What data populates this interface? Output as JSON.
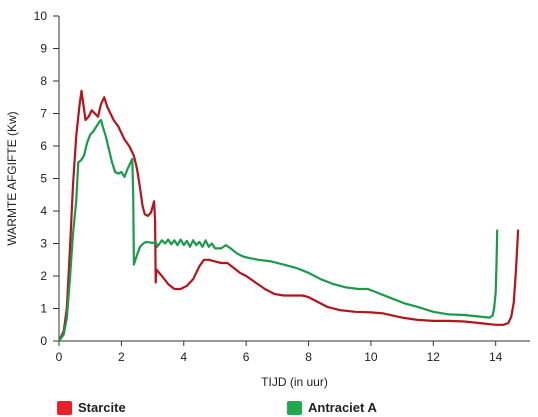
{
  "chart_data": {
    "type": "line",
    "xlabel": "TIJD (in uur)",
    "ylabel": "WARMTE AFGIFTE (Kw)",
    "xlim": [
      0,
      15.1
    ],
    "ylim": [
      0,
      10
    ],
    "xticks": [
      0,
      2,
      4,
      6,
      8,
      10,
      12,
      14
    ],
    "yticks": [
      0,
      1,
      2,
      3,
      4,
      5,
      6,
      7,
      8,
      9,
      10
    ],
    "grid": "y-ticks only",
    "legend_position": "bottom",
    "series": [
      {
        "name": "Starcite",
        "color": "#b4141e",
        "points": [
          [
            0.0,
            0.0
          ],
          [
            0.15,
            0.3
          ],
          [
            0.25,
            1.0
          ],
          [
            0.35,
            2.8
          ],
          [
            0.45,
            4.8
          ],
          [
            0.55,
            6.3
          ],
          [
            0.65,
            7.2
          ],
          [
            0.72,
            7.7
          ],
          [
            0.78,
            7.3
          ],
          [
            0.85,
            6.8
          ],
          [
            0.95,
            6.9
          ],
          [
            1.05,
            7.1
          ],
          [
            1.15,
            7.0
          ],
          [
            1.25,
            6.9
          ],
          [
            1.35,
            7.3
          ],
          [
            1.45,
            7.5
          ],
          [
            1.55,
            7.2
          ],
          [
            1.65,
            7.0
          ],
          [
            1.75,
            6.8
          ],
          [
            1.9,
            6.6
          ],
          [
            2.0,
            6.4
          ],
          [
            2.1,
            6.2
          ],
          [
            2.25,
            6.0
          ],
          [
            2.4,
            5.7
          ],
          [
            2.5,
            5.3
          ],
          [
            2.6,
            4.7
          ],
          [
            2.68,
            4.15
          ],
          [
            2.75,
            3.9
          ],
          [
            2.85,
            3.85
          ],
          [
            2.95,
            3.95
          ],
          [
            3.05,
            4.3
          ],
          [
            3.08,
            3.7
          ],
          [
            3.1,
            1.8
          ],
          [
            3.12,
            2.2
          ],
          [
            3.3,
            2.0
          ],
          [
            3.5,
            1.75
          ],
          [
            3.7,
            1.6
          ],
          [
            3.9,
            1.6
          ],
          [
            4.1,
            1.7
          ],
          [
            4.3,
            1.9
          ],
          [
            4.5,
            2.3
          ],
          [
            4.65,
            2.5
          ],
          [
            4.8,
            2.5
          ],
          [
            5.0,
            2.45
          ],
          [
            5.2,
            2.4
          ],
          [
            5.4,
            2.4
          ],
          [
            5.6,
            2.25
          ],
          [
            5.8,
            2.1
          ],
          [
            6.0,
            2.0
          ],
          [
            6.3,
            1.8
          ],
          [
            6.6,
            1.6
          ],
          [
            6.9,
            1.45
          ],
          [
            7.2,
            1.4
          ],
          [
            7.5,
            1.4
          ],
          [
            7.8,
            1.4
          ],
          [
            8.0,
            1.35
          ],
          [
            8.3,
            1.2
          ],
          [
            8.6,
            1.05
          ],
          [
            9.0,
            0.95
          ],
          [
            9.5,
            0.9
          ],
          [
            10.0,
            0.88
          ],
          [
            10.4,
            0.85
          ],
          [
            10.7,
            0.78
          ],
          [
            11.0,
            0.72
          ],
          [
            11.5,
            0.65
          ],
          [
            12.0,
            0.62
          ],
          [
            12.5,
            0.62
          ],
          [
            13.0,
            0.6
          ],
          [
            13.5,
            0.55
          ],
          [
            14.0,
            0.5
          ],
          [
            14.25,
            0.5
          ],
          [
            14.4,
            0.55
          ],
          [
            14.5,
            0.75
          ],
          [
            14.58,
            1.2
          ],
          [
            14.65,
            2.2
          ],
          [
            14.72,
            3.4
          ]
        ]
      },
      {
        "name": "Antraciet A",
        "color": "#1a9a4a",
        "points": [
          [
            0.0,
            0.0
          ],
          [
            0.15,
            0.2
          ],
          [
            0.25,
            0.7
          ],
          [
            0.35,
            1.9
          ],
          [
            0.45,
            3.3
          ],
          [
            0.55,
            4.3
          ],
          [
            0.62,
            5.5
          ],
          [
            0.7,
            5.55
          ],
          [
            0.8,
            5.7
          ],
          [
            0.9,
            6.1
          ],
          [
            1.0,
            6.35
          ],
          [
            1.1,
            6.45
          ],
          [
            1.2,
            6.6
          ],
          [
            1.3,
            6.75
          ],
          [
            1.35,
            6.8
          ],
          [
            1.4,
            6.6
          ],
          [
            1.5,
            6.3
          ],
          [
            1.6,
            5.9
          ],
          [
            1.7,
            5.5
          ],
          [
            1.8,
            5.2
          ],
          [
            1.9,
            5.15
          ],
          [
            2.0,
            5.2
          ],
          [
            2.1,
            5.05
          ],
          [
            2.2,
            5.3
          ],
          [
            2.3,
            5.5
          ],
          [
            2.35,
            5.6
          ],
          [
            2.38,
            4.5
          ],
          [
            2.4,
            2.35
          ],
          [
            2.5,
            2.65
          ],
          [
            2.6,
            2.9
          ],
          [
            2.7,
            3.0
          ],
          [
            2.8,
            3.05
          ],
          [
            3.0,
            3.02
          ],
          [
            3.1,
            3.05
          ],
          [
            3.15,
            2.9
          ],
          [
            3.3,
            3.1
          ],
          [
            3.4,
            3.0
          ],
          [
            3.5,
            3.12
          ],
          [
            3.6,
            2.98
          ],
          [
            3.7,
            3.1
          ],
          [
            3.8,
            2.95
          ],
          [
            3.9,
            3.12
          ],
          [
            4.0,
            2.95
          ],
          [
            4.1,
            3.08
          ],
          [
            4.2,
            2.9
          ],
          [
            4.3,
            3.1
          ],
          [
            4.4,
            2.95
          ],
          [
            4.5,
            3.05
          ],
          [
            4.6,
            2.9
          ],
          [
            4.7,
            3.1
          ],
          [
            4.8,
            2.9
          ],
          [
            4.9,
            3.0
          ],
          [
            5.0,
            2.85
          ],
          [
            5.2,
            2.85
          ],
          [
            5.35,
            2.95
          ],
          [
            5.5,
            2.85
          ],
          [
            5.7,
            2.7
          ],
          [
            5.9,
            2.6
          ],
          [
            6.1,
            2.55
          ],
          [
            6.4,
            2.5
          ],
          [
            6.8,
            2.45
          ],
          [
            7.2,
            2.35
          ],
          [
            7.6,
            2.25
          ],
          [
            8.0,
            2.1
          ],
          [
            8.4,
            1.9
          ],
          [
            8.8,
            1.75
          ],
          [
            9.2,
            1.65
          ],
          [
            9.6,
            1.6
          ],
          [
            9.9,
            1.6
          ],
          [
            10.3,
            1.45
          ],
          [
            10.7,
            1.3
          ],
          [
            11.1,
            1.15
          ],
          [
            11.5,
            1.05
          ],
          [
            12.0,
            0.9
          ],
          [
            12.5,
            0.82
          ],
          [
            13.0,
            0.8
          ],
          [
            13.5,
            0.75
          ],
          [
            13.8,
            0.72
          ],
          [
            13.9,
            0.78
          ],
          [
            13.95,
            1.0
          ],
          [
            14.0,
            1.5
          ],
          [
            14.03,
            2.5
          ],
          [
            14.05,
            3.4
          ]
        ]
      }
    ]
  }
}
